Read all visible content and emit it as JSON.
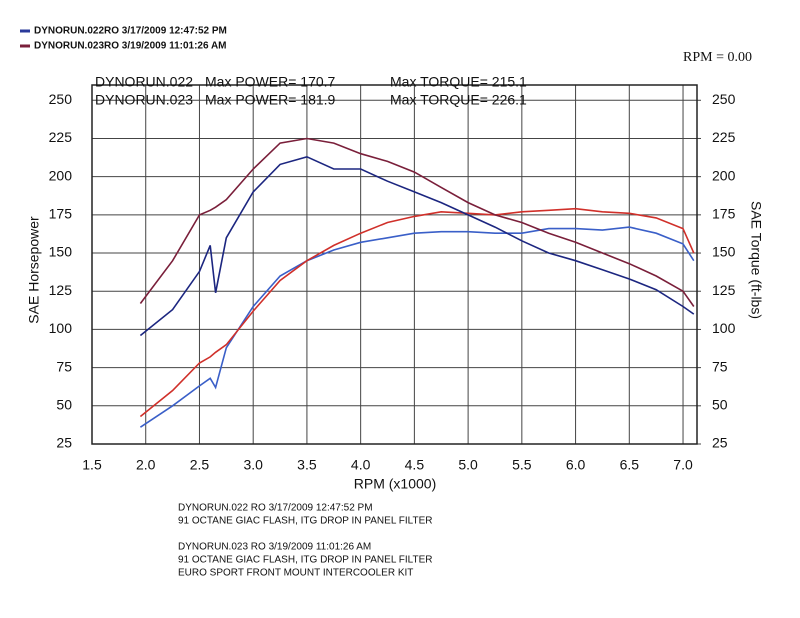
{
  "chart_data": {
    "type": "line",
    "legend": [
      {
        "label": "DYNORUN.022RO  3/17/2009 12:47:52 PM",
        "color": "#2a3a9a"
      },
      {
        "label": "DYNORUN.023RO  3/19/2009 11:01:26 AM",
        "color": "#7a1f3a"
      }
    ],
    "status": "RPM = 0.00",
    "annotations": [
      {
        "text": "DYNORUN.022",
        "color": "#3355bb"
      },
      {
        "text": "Max POWER= 170.7",
        "color": "#3355bb"
      },
      {
        "text": "Max TORQUE= 215.1",
        "color": "#2b2f8f"
      },
      {
        "text": "DYNORUN.023",
        "color": "#d03030"
      },
      {
        "text": "Max POWER= 181.9",
        "color": "#d03030"
      },
      {
        "text": "Max TORQUE= 226.1",
        "color": "#8a2040"
      }
    ],
    "x_label": "RPM (x1000)",
    "y_label": "SAE Horsepower",
    "y2_label": "SAE Torque (ft-lbs)",
    "xlim": [
      1.5,
      7.13
    ],
    "ylim": [
      25,
      260
    ],
    "y2lim": [
      25,
      260
    ],
    "xticks": [
      {
        "value": 1.5,
        "label": "1.5"
      },
      {
        "value": 2,
        "label": "2.0"
      },
      {
        "value": 2.5,
        "label": "2.5"
      },
      {
        "value": 3,
        "label": "3.0"
      },
      {
        "value": 3.5,
        "label": "3.5"
      },
      {
        "value": 4,
        "label": "4.0"
      },
      {
        "value": 4.5,
        "label": "4.5"
      },
      {
        "value": 5,
        "label": "5.0"
      },
      {
        "value": 5.5,
        "label": "5.5"
      },
      {
        "value": 6,
        "label": "6.0"
      },
      {
        "value": 6.5,
        "label": "6.5"
      },
      {
        "value": 7,
        "label": "7.0"
      }
    ],
    "yticks": [
      25,
      50,
      75,
      100,
      125,
      150,
      175,
      200,
      225,
      250
    ],
    "y2ticks": [
      25,
      50,
      75,
      100,
      125,
      150,
      175,
      200,
      225,
      250
    ],
    "grid": true,
    "x": [
      1.95,
      2.25,
      2.5,
      2.6,
      2.65,
      2.75,
      3.0,
      3.25,
      3.5,
      3.75,
      4.0,
      4.25,
      4.5,
      4.75,
      5.0,
      5.25,
      5.5,
      5.75,
      6.0,
      6.25,
      6.5,
      6.75,
      7.0,
      7.1
    ],
    "series": [
      {
        "color": "#3a5fc8",
        "values": [
          36,
          50,
          63,
          68,
          62,
          88,
          115,
          135,
          145,
          152,
          157,
          160,
          163,
          164,
          164,
          163,
          163,
          166,
          166,
          165,
          167,
          163,
          156,
          145
        ]
      },
      {
        "color": "#d0302a",
        "values": [
          43,
          60,
          78,
          82,
          85,
          90,
          112,
          132,
          145,
          155,
          163,
          170,
          174,
          177,
          176,
          175,
          177,
          178,
          179,
          177,
          176,
          173,
          166,
          150
        ]
      },
      {
        "color": "#1c2680",
        "axis": "y2",
        "values": [
          96,
          113,
          138,
          155,
          124,
          160,
          190,
          208,
          213,
          205,
          205,
          197,
          190,
          183,
          175,
          167,
          158,
          150,
          145,
          139,
          133,
          126,
          115,
          110
        ]
      },
      {
        "color": "#7a1f3a",
        "axis": "y2",
        "values": [
          117,
          145,
          175,
          178,
          180,
          185,
          205,
          222,
          225,
          222,
          215,
          210,
          203,
          193,
          183,
          175,
          170,
          163,
          157,
          150,
          143,
          135,
          125,
          115
        ]
      }
    ],
    "notes": [
      "DYNORUN.022      RO   3/17/2009 12:47:52 PM",
      "91 OCTANE GIAC FLASH, ITG DROP IN PANEL FILTER",
      "DYNORUN.023      RO   3/19/2009 11:01:26 AM",
      "91 OCTANE GIAC FLASH, ITG DROP IN PANEL FILTER",
      "EURO SPORT FRONT MOUNT INTERCOOLER KIT"
    ]
  }
}
